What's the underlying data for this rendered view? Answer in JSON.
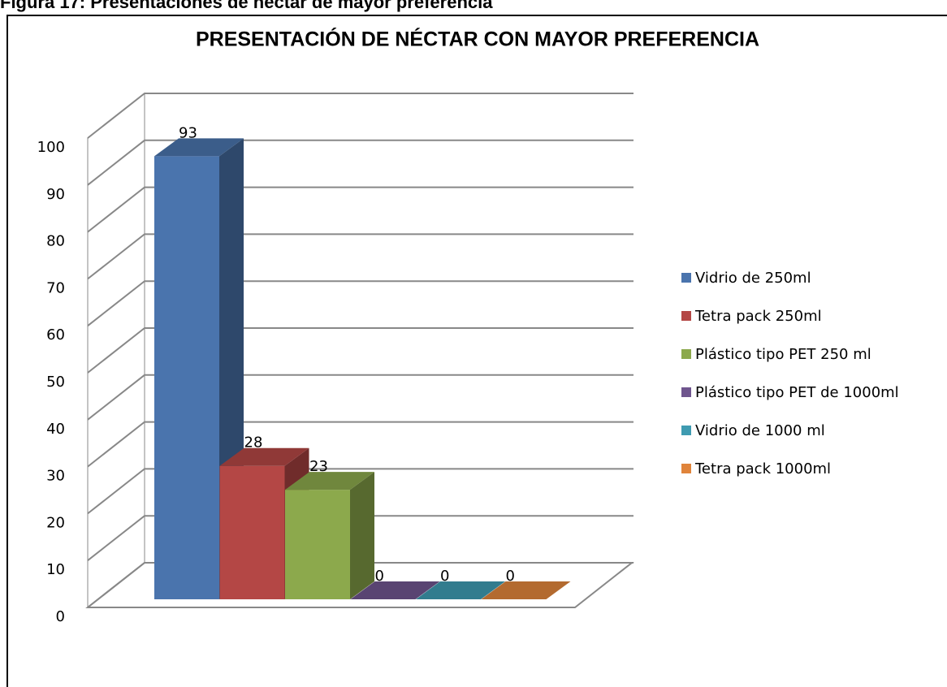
{
  "caption": "Figura 17: Presentaciones de néctar de mayor preferencia",
  "chart_data": {
    "type": "bar3d",
    "title": "PRESENTACIÓN DE NÉCTAR CON MAYOR PREFERENCIA",
    "categories": [
      null
    ],
    "series": [
      {
        "name": "Vidrio de 250ml",
        "color": "#4a74ad",
        "values": [
          93
        ]
      },
      {
        "name": "Tetra pack 250ml",
        "color": "#b44745",
        "values": [
          28
        ]
      },
      {
        "name": "Plástico tipo PET 250 ml",
        "color": "#8ca94c",
        "values": [
          23
        ]
      },
      {
        "name": "Plástico tipo PET de 1000ml",
        "color": "#6f558e",
        "values": [
          0
        ]
      },
      {
        "name": "Vidrio de 1000 ml",
        "color": "#3f9bb1",
        "values": [
          0
        ]
      },
      {
        "name": "Tetra pack 1000ml",
        "color": "#e0843b",
        "values": [
          0
        ]
      }
    ],
    "ylim": [
      0,
      100
    ],
    "yticks": [
      0,
      10,
      20,
      30,
      40,
      50,
      60,
      70,
      80,
      90,
      100
    ],
    "grid": true,
    "legend": "right"
  }
}
